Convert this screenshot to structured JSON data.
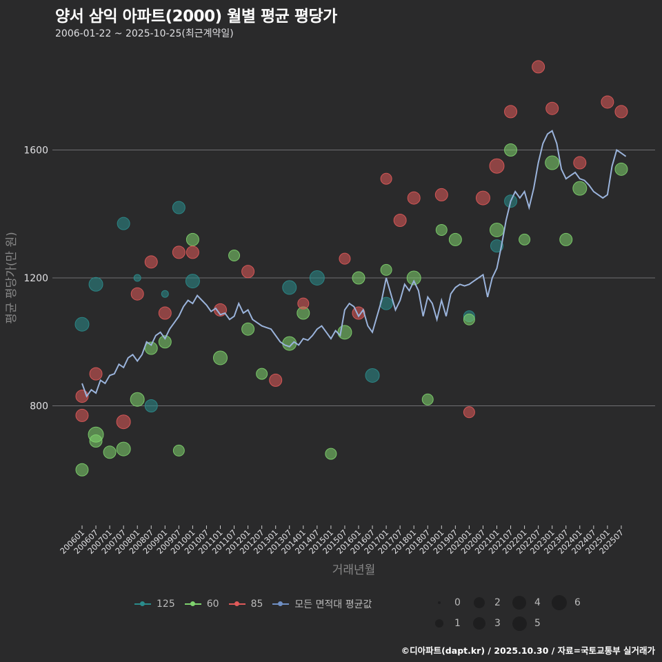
{
  "header": {
    "title": "양서 삼익 아파트(2000) 월별 평균 평당가",
    "subtitle": "2006-01-22 ~ 2025-10-25(최근계약일)"
  },
  "footer": {
    "credit": "©디아파트(dapt.kr) / 2025.10.30 / 자료=국토교통부 실거래가"
  },
  "legend": {
    "series": [
      {
        "label": "125",
        "color": "#2a8c8c"
      },
      {
        "label": "60",
        "color": "#7fd36e"
      },
      {
        "label": "85",
        "color": "#e05a5a"
      },
      {
        "label": "모든 면적대 평균값",
        "color": "#6f8fc4"
      }
    ],
    "sizes": [
      {
        "label": "0",
        "r": 2
      },
      {
        "label": "2",
        "r": 8
      },
      {
        "label": "4",
        "r": 10
      },
      {
        "label": "6",
        "r": 11
      },
      {
        "label": "1",
        "r": 6
      },
      {
        "label": "3",
        "r": 9
      },
      {
        "label": "5",
        "r": 10.5
      }
    ]
  },
  "chart_data": {
    "type": "scatter",
    "title": "양서 삼익 아파트(2000) 월별 평균 평당가",
    "subtitle": "2006-01-22 ~ 2025-10-25(최근계약일)",
    "xlabel": "거래년월",
    "ylabel": "평균 평당가(만 원)",
    "ylim": [
      500,
      1900
    ],
    "yticks": [
      800,
      1200,
      1600
    ],
    "grid": true,
    "legend_position": "bottom",
    "x_ticks": [
      "200601",
      "200607",
      "200701",
      "200707",
      "200801",
      "200807",
      "200901",
      "200907",
      "201001",
      "201007",
      "201101",
      "201107",
      "201201",
      "201207",
      "201301",
      "201307",
      "201401",
      "201407",
      "201501",
      "201507",
      "201601",
      "201607",
      "201701",
      "201707",
      "201801",
      "201807",
      "201901",
      "201907",
      "202001",
      "202007",
      "202101",
      "202107",
      "202201",
      "202207",
      "202301",
      "202307",
      "202401",
      "202407",
      "202501",
      "202507"
    ],
    "bubble_size_legend": [
      0,
      1,
      2,
      3,
      4,
      5,
      6
    ],
    "series": [
      {
        "name": "모든 면적대 평균값",
        "type": "line",
        "color": "#9bb4dc",
        "points": [
          [
            "200601",
            870
          ],
          [
            "200603",
            830
          ],
          [
            "200605",
            850
          ],
          [
            "200607",
            840
          ],
          [
            "200609",
            880
          ],
          [
            "200611",
            870
          ],
          [
            "200701",
            895
          ],
          [
            "200703",
            900
          ],
          [
            "200705",
            930
          ],
          [
            "200707",
            920
          ],
          [
            "200709",
            950
          ],
          [
            "200711",
            960
          ],
          [
            "200801",
            940
          ],
          [
            "200803",
            960
          ],
          [
            "200805",
            1000
          ],
          [
            "200807",
            990
          ],
          [
            "200809",
            1020
          ],
          [
            "200811",
            1030
          ],
          [
            "200901",
            1010
          ],
          [
            "200903",
            1040
          ],
          [
            "200905",
            1060
          ],
          [
            "200907",
            1080
          ],
          [
            "200909",
            1110
          ],
          [
            "200911",
            1130
          ],
          [
            "201001",
            1120
          ],
          [
            "201003",
            1145
          ],
          [
            "201005",
            1130
          ],
          [
            "201007",
            1115
          ],
          [
            "201009",
            1095
          ],
          [
            "201011",
            1105
          ],
          [
            "201101",
            1085
          ],
          [
            "201103",
            1090
          ],
          [
            "201105",
            1070
          ],
          [
            "201107",
            1080
          ],
          [
            "201109",
            1120
          ],
          [
            "201111",
            1090
          ],
          [
            "201201",
            1100
          ],
          [
            "201203",
            1070
          ],
          [
            "201205",
            1060
          ],
          [
            "201207",
            1050
          ],
          [
            "201209",
            1045
          ],
          [
            "201211",
            1040
          ],
          [
            "201301",
            1020
          ],
          [
            "201303",
            1000
          ],
          [
            "201305",
            990
          ],
          [
            "201307",
            985
          ],
          [
            "201309",
            1000
          ],
          [
            "201311",
            990
          ],
          [
            "201401",
            1010
          ],
          [
            "201403",
            1005
          ],
          [
            "201405",
            1020
          ],
          [
            "201407",
            1040
          ],
          [
            "201409",
            1050
          ],
          [
            "201411",
            1030
          ],
          [
            "201501",
            1010
          ],
          [
            "201503",
            1035
          ],
          [
            "201505",
            1020
          ],
          [
            "201507",
            1100
          ],
          [
            "201509",
            1120
          ],
          [
            "201511",
            1110
          ],
          [
            "201601",
            1080
          ],
          [
            "201603",
            1100
          ],
          [
            "201605",
            1050
          ],
          [
            "201607",
            1030
          ],
          [
            "201609",
            1080
          ],
          [
            "201611",
            1130
          ],
          [
            "201701",
            1200
          ],
          [
            "201703",
            1150
          ],
          [
            "201705",
            1100
          ],
          [
            "201707",
            1130
          ],
          [
            "201709",
            1180
          ],
          [
            "201711",
            1160
          ],
          [
            "201801",
            1190
          ],
          [
            "201803",
            1160
          ],
          [
            "201805",
            1080
          ],
          [
            "201807",
            1140
          ],
          [
            "201809",
            1120
          ],
          [
            "201811",
            1070
          ],
          [
            "201901",
            1130
          ],
          [
            "201903",
            1080
          ],
          [
            "201905",
            1150
          ],
          [
            "201907",
            1170
          ],
          [
            "201909",
            1180
          ],
          [
            "201911",
            1175
          ],
          [
            "202001",
            1180
          ],
          [
            "202003",
            1190
          ],
          [
            "202005",
            1200
          ],
          [
            "202007",
            1210
          ],
          [
            "202009",
            1140
          ],
          [
            "202011",
            1200
          ],
          [
            "202101",
            1230
          ],
          [
            "202103",
            1300
          ],
          [
            "202105",
            1380
          ],
          [
            "202107",
            1440
          ],
          [
            "202109",
            1470
          ],
          [
            "202111",
            1450
          ],
          [
            "202201",
            1470
          ],
          [
            "202203",
            1420
          ],
          [
            "202205",
            1480
          ],
          [
            "202207",
            1560
          ],
          [
            "202209",
            1620
          ],
          [
            "202211",
            1650
          ],
          [
            "202301",
            1660
          ],
          [
            "202303",
            1620
          ],
          [
            "202305",
            1540
          ],
          [
            "202307",
            1510
          ],
          [
            "202309",
            1520
          ],
          [
            "202311",
            1530
          ],
          [
            "202401",
            1510
          ],
          [
            "202403",
            1505
          ],
          [
            "202405",
            1490
          ],
          [
            "202407",
            1470
          ],
          [
            "202409",
            1460
          ],
          [
            "202411",
            1450
          ],
          [
            "202501",
            1460
          ],
          [
            "202503",
            1550
          ],
          [
            "202505",
            1600
          ],
          [
            "202507",
            1590
          ],
          [
            "202509",
            1580
          ]
        ]
      },
      {
        "name": "125",
        "type": "bubble",
        "color": "#2a8c8c",
        "points": [
          [
            "200601",
            1055,
            4
          ],
          [
            "200607",
            1180,
            4
          ],
          [
            "200707",
            1370,
            3
          ],
          [
            "200801",
            1200,
            1
          ],
          [
            "200807",
            800,
            3
          ],
          [
            "200901",
            1150,
            1
          ],
          [
            "200907",
            1420,
            3
          ],
          [
            "201001",
            1190,
            4
          ],
          [
            "201307",
            1170,
            4
          ],
          [
            "201407",
            1200,
            5
          ],
          [
            "201607",
            895,
            4
          ],
          [
            "201701",
            1120,
            3
          ],
          [
            "202001",
            1080,
            2
          ],
          [
            "202101",
            1300,
            3
          ],
          [
            "202107",
            1440,
            3
          ]
        ]
      },
      {
        "name": "60",
        "type": "bubble",
        "color": "#7fd36e",
        "points": [
          [
            "200601",
            600,
            3
          ],
          [
            "200607",
            690,
            3
          ],
          [
            "200607",
            710,
            6
          ],
          [
            "200701",
            655,
            3
          ],
          [
            "200707",
            665,
            4
          ],
          [
            "200801",
            820,
            4
          ],
          [
            "200807",
            980,
            3
          ],
          [
            "200901",
            1000,
            3
          ],
          [
            "200907",
            660,
            2
          ],
          [
            "201001",
            1320,
            3
          ],
          [
            "201101",
            950,
            4
          ],
          [
            "201107",
            1270,
            2
          ],
          [
            "201201",
            1040,
            3
          ],
          [
            "201207",
            900,
            2
          ],
          [
            "201307",
            995,
            4
          ],
          [
            "201401",
            1090,
            3
          ],
          [
            "201501",
            650,
            2
          ],
          [
            "201507",
            1030,
            4
          ],
          [
            "201601",
            1200,
            3
          ],
          [
            "201701",
            1225,
            2
          ],
          [
            "201801",
            1200,
            4
          ],
          [
            "201807",
            820,
            2
          ],
          [
            "201901",
            1350,
            2
          ],
          [
            "201907",
            1320,
            3
          ],
          [
            "202001",
            1070,
            2
          ],
          [
            "202101",
            1350,
            4
          ],
          [
            "202107",
            1600,
            3
          ],
          [
            "202201",
            1320,
            2
          ],
          [
            "202301",
            1560,
            4
          ],
          [
            "202307",
            1320,
            3
          ],
          [
            "202401",
            1480,
            4
          ],
          [
            "202507",
            1540,
            3
          ]
        ]
      },
      {
        "name": "85",
        "type": "bubble",
        "color": "#e05a5a",
        "points": [
          [
            "200601",
            770,
            3
          ],
          [
            "200601",
            830,
            3
          ],
          [
            "200607",
            900,
            3
          ],
          [
            "200707",
            750,
            4
          ],
          [
            "200801",
            1150,
            3
          ],
          [
            "200807",
            1250,
            3
          ],
          [
            "200901",
            1090,
            3
          ],
          [
            "200907",
            1280,
            3
          ],
          [
            "201001",
            1280,
            3
          ],
          [
            "201101",
            1100,
            3
          ],
          [
            "201201",
            1220,
            3
          ],
          [
            "201301",
            880,
            3
          ],
          [
            "201401",
            1120,
            2
          ],
          [
            "201507",
            1260,
            2
          ],
          [
            "201601",
            1090,
            3
          ],
          [
            "201701",
            1510,
            2
          ],
          [
            "201707",
            1380,
            3
          ],
          [
            "201801",
            1450,
            3
          ],
          [
            "201901",
            1460,
            3
          ],
          [
            "202001",
            780,
            2
          ],
          [
            "202007",
            1450,
            4
          ],
          [
            "202101",
            1550,
            5
          ],
          [
            "202107",
            1720,
            3
          ],
          [
            "202207",
            1860,
            3
          ],
          [
            "202301",
            1730,
            3
          ],
          [
            "202401",
            1560,
            3
          ],
          [
            "202501",
            1750,
            3
          ],
          [
            "202507",
            1720,
            3
          ]
        ]
      }
    ]
  }
}
